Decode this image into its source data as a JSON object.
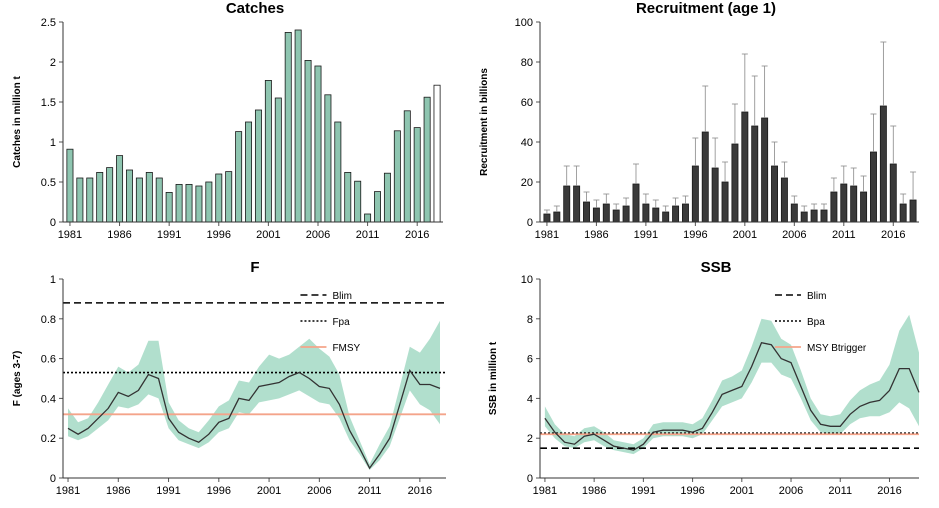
{
  "chart_data": [
    {
      "type": "bar",
      "title": "Catches",
      "ylabel": "Catches in million t",
      "xlabel": "",
      "ylim": [
        0,
        2.5
      ],
      "yticks": [
        "0",
        "0.5",
        "1",
        "1.5",
        "2",
        "2.5"
      ],
      "xticks": [
        "1981",
        "1986",
        "1991",
        "1996",
        "2001",
        "2006",
        "2011",
        "2016"
      ],
      "bar_color": "#8ec5b0",
      "last_bar_color": "#ffffff",
      "x": [
        1981,
        1982,
        1983,
        1984,
        1985,
        1986,
        1987,
        1988,
        1989,
        1990,
        1991,
        1992,
        1993,
        1994,
        1995,
        1996,
        1997,
        1998,
        1999,
        2000,
        2001,
        2002,
        2003,
        2004,
        2005,
        2006,
        2007,
        2008,
        2009,
        2010,
        2011,
        2012,
        2013,
        2014,
        2015,
        2016,
        2017,
        2018
      ],
      "values": [
        0.91,
        0.55,
        0.55,
        0.62,
        0.68,
        0.83,
        0.65,
        0.55,
        0.62,
        0.55,
        0.37,
        0.47,
        0.47,
        0.45,
        0.5,
        0.6,
        0.63,
        1.13,
        1.25,
        1.4,
        1.77,
        1.55,
        2.37,
        2.4,
        2.02,
        1.95,
        1.59,
        1.25,
        0.62,
        0.51,
        0.1,
        0.38,
        0.61,
        1.14,
        1.39,
        1.18,
        1.56,
        1.71
      ]
    },
    {
      "type": "bar",
      "title": "Recruitment (age 1)",
      "ylabel": "Recruitment in billions",
      "xlabel": "",
      "ylim": [
        0,
        100
      ],
      "yticks": [
        "0",
        "20",
        "40",
        "60",
        "80",
        "100"
      ],
      "xticks": [
        "1981",
        "1986",
        "1991",
        "1996",
        "2001",
        "2006",
        "2011",
        "2016"
      ],
      "bar_color": "#3a3a3a",
      "last_bar_color": "#3a3a3a",
      "x": [
        1981,
        1982,
        1983,
        1984,
        1985,
        1986,
        1987,
        1988,
        1989,
        1990,
        1991,
        1992,
        1993,
        1994,
        1995,
        1996,
        1997,
        1998,
        1999,
        2000,
        2001,
        2002,
        2003,
        2004,
        2005,
        2006,
        2007,
        2008,
        2009,
        2010,
        2011,
        2012,
        2013,
        2014,
        2015,
        2016,
        2017,
        2018
      ],
      "values": [
        4,
        5,
        18,
        18,
        10,
        7,
        9,
        6,
        8,
        19,
        9,
        7,
        5,
        8,
        9,
        28,
        45,
        27,
        20,
        39,
        55,
        48,
        52,
        28,
        22,
        9,
        5,
        6,
        6,
        15,
        19,
        18,
        15,
        35,
        58,
        29,
        9,
        11
      ],
      "upper": [
        6,
        8,
        28,
        28,
        15,
        11,
        14,
        9,
        12,
        29,
        14,
        11,
        8,
        12,
        13,
        42,
        68,
        42,
        30,
        59,
        84,
        73,
        78,
        40,
        30,
        13,
        8,
        9,
        9,
        22,
        28,
        27,
        23,
        54,
        90,
        48,
        14,
        25
      ]
    },
    {
      "type": "line",
      "title": "F",
      "ylabel": "F (ages 3-7)",
      "xlabel": "",
      "ylim": [
        0,
        1
      ],
      "yticks": [
        "0",
        "0.2",
        "0.4",
        "0.6",
        "0.8",
        "1"
      ],
      "xticks": [
        "1981",
        "1986",
        "1991",
        "1996",
        "2001",
        "2006",
        "2011",
        "2016"
      ],
      "band_color": "#a8dcc8",
      "line_color": "#333333",
      "x": [
        1981,
        1982,
        1983,
        1984,
        1985,
        1986,
        1987,
        1988,
        1989,
        1990,
        1991,
        1992,
        1993,
        1994,
        1995,
        1996,
        1997,
        1998,
        1999,
        2000,
        2001,
        2002,
        2003,
        2004,
        2005,
        2006,
        2007,
        2008,
        2009,
        2010,
        2011,
        2012,
        2013,
        2014,
        2015,
        2016,
        2017,
        2018
      ],
      "values": [
        0.25,
        0.22,
        0.25,
        0.3,
        0.35,
        0.43,
        0.41,
        0.44,
        0.52,
        0.5,
        0.3,
        0.23,
        0.2,
        0.18,
        0.22,
        0.28,
        0.3,
        0.4,
        0.39,
        0.46,
        0.47,
        0.48,
        0.51,
        0.53,
        0.5,
        0.46,
        0.45,
        0.37,
        0.24,
        0.15,
        0.05,
        0.12,
        0.2,
        0.37,
        0.54,
        0.47,
        0.47,
        0.45
      ],
      "lower": [
        0.21,
        0.19,
        0.21,
        0.25,
        0.29,
        0.36,
        0.35,
        0.37,
        0.42,
        0.4,
        0.25,
        0.19,
        0.17,
        0.15,
        0.18,
        0.23,
        0.25,
        0.33,
        0.32,
        0.38,
        0.39,
        0.4,
        0.42,
        0.44,
        0.41,
        0.38,
        0.37,
        0.3,
        0.19,
        0.12,
        0.04,
        0.09,
        0.16,
        0.3,
        0.44,
        0.37,
        0.34,
        0.27
      ],
      "upper": [
        0.35,
        0.28,
        0.3,
        0.38,
        0.47,
        0.56,
        0.53,
        0.57,
        0.69,
        0.69,
        0.38,
        0.29,
        0.25,
        0.23,
        0.29,
        0.36,
        0.39,
        0.49,
        0.48,
        0.56,
        0.62,
        0.6,
        0.62,
        0.66,
        0.7,
        0.65,
        0.61,
        0.52,
        0.31,
        0.19,
        0.07,
        0.17,
        0.26,
        0.46,
        0.66,
        0.63,
        0.7,
        0.79
      ],
      "reference_lines": [
        {
          "name": "Blim",
          "value": 0.88,
          "style": "dashed",
          "color": "#000000"
        },
        {
          "name": "Fpa",
          "value": 0.53,
          "style": "dotted",
          "color": "#000000"
        },
        {
          "name": "FMSY",
          "value": 0.32,
          "style": "solid",
          "color": "#f4a48a"
        }
      ],
      "legend_position": "top-right"
    },
    {
      "type": "line",
      "title": "SSB",
      "ylabel": "SSB in million t",
      "xlabel": "",
      "ylim": [
        0,
        10
      ],
      "yticks": [
        "0",
        "2",
        "4",
        "6",
        "8",
        "10"
      ],
      "xticks": [
        "1981",
        "1986",
        "1991",
        "1996",
        "2001",
        "2006",
        "2011",
        "2016"
      ],
      "band_color": "#a8dcc8",
      "line_color": "#333333",
      "x": [
        1981,
        1982,
        1983,
        1984,
        1985,
        1986,
        1987,
        1988,
        1989,
        1990,
        1991,
        1992,
        1993,
        1994,
        1995,
        1996,
        1997,
        1998,
        1999,
        2000,
        2001,
        2002,
        2003,
        2004,
        2005,
        2006,
        2007,
        2008,
        2009,
        2010,
        2011,
        2012,
        2013,
        2014,
        2015,
        2016,
        2017,
        2018,
        2019
      ],
      "values": [
        3.0,
        2.3,
        1.8,
        1.7,
        2.1,
        2.2,
        1.9,
        1.6,
        1.5,
        1.4,
        1.7,
        2.3,
        2.4,
        2.4,
        2.4,
        2.3,
        2.5,
        3.3,
        4.2,
        4.4,
        4.6,
        5.6,
        6.8,
        6.7,
        6.0,
        5.8,
        4.6,
        3.4,
        2.7,
        2.6,
        2.6,
        3.2,
        3.6,
        3.8,
        3.9,
        4.4,
        5.5,
        5.5,
        4.3
      ],
      "lower": [
        2.6,
        2.0,
        1.6,
        1.5,
        1.8,
        1.9,
        1.6,
        1.4,
        1.3,
        1.2,
        1.5,
        2.0,
        2.1,
        2.1,
        2.1,
        2.0,
        2.2,
        2.9,
        3.6,
        3.8,
        4.0,
        4.8,
        5.8,
        5.8,
        5.2,
        5.0,
        4.0,
        2.9,
        2.3,
        2.2,
        2.2,
        2.7,
        3.0,
        3.1,
        3.1,
        3.3,
        3.8,
        3.5,
        2.6
      ],
      "upper": [
        3.6,
        2.7,
        2.2,
        2.1,
        2.5,
        2.6,
        2.3,
        1.9,
        1.8,
        1.7,
        2.0,
        2.7,
        2.8,
        2.8,
        2.8,
        2.7,
        3.0,
        3.9,
        4.9,
        5.1,
        5.4,
        6.6,
        8.0,
        7.9,
        7.0,
        6.7,
        5.4,
        4.0,
        3.2,
        3.1,
        3.2,
        3.9,
        4.4,
        4.7,
        4.9,
        5.7,
        7.4,
        8.2,
        6.3
      ],
      "reference_lines": [
        {
          "name": "Blim",
          "value": 1.5,
          "style": "dashed",
          "color": "#000000"
        },
        {
          "name": "Bpa",
          "value": 2.25,
          "style": "dotted",
          "color": "#000000"
        },
        {
          "name": "MSY Btrigger",
          "value": 2.2,
          "style": "solid",
          "color": "#f4a48a"
        }
      ],
      "legend_position": "top-right"
    }
  ]
}
